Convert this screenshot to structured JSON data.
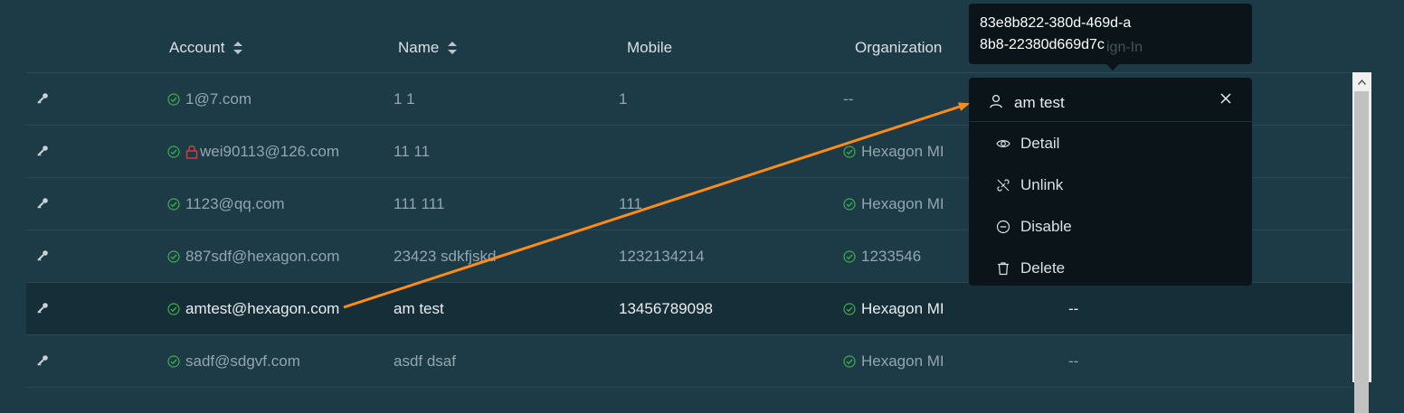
{
  "table": {
    "headers": {
      "account": "Account",
      "name": "Name",
      "mobile": "Mobile",
      "organization": "Organization"
    },
    "rows": [
      {
        "account": "1@7.com",
        "name": "1 1",
        "mobile": "1",
        "organization": "--",
        "org_icon": "",
        "locked": false,
        "last": ""
      },
      {
        "account": "wei90113@126.com",
        "name": "11 11",
        "mobile": "",
        "organization": "Hexagon MI",
        "org_icon": "check-circle-icon",
        "locked": true,
        "last": ""
      },
      {
        "account": "1123@qq.com",
        "name": "111 111",
        "mobile": "111",
        "organization": "Hexagon MI",
        "org_icon": "check-circle-icon",
        "locked": false,
        "last": ""
      },
      {
        "account": "887sdf@hexagon.com",
        "name": "23423 sdkfjskd",
        "mobile": "1232134214",
        "organization": "1233546",
        "org_icon": "check-circle-icon",
        "locked": false,
        "last": ""
      },
      {
        "account": "amtest@hexagon.com",
        "name": "am test",
        "mobile": "13456789098",
        "organization": "Hexagon MI",
        "org_icon": "check-circle-icon",
        "locked": false,
        "last": "--",
        "selected": true
      },
      {
        "account": "sadf@sdgvf.com",
        "name": "asdf dsaf",
        "mobile": "",
        "organization": "Hexagon MI",
        "org_icon": "check-circle-icon",
        "locked": false,
        "last": "--"
      }
    ]
  },
  "tooltip": {
    "text": "83e8b822-380d-469d-a8b8-22380d669d7c",
    "hidden_header_fragment": "ign-In"
  },
  "menu": {
    "title": "am test",
    "items": [
      {
        "label": "Detail",
        "icon": "eye-icon"
      },
      {
        "label": "Unlink",
        "icon": "unlink-icon"
      },
      {
        "label": "Disable",
        "icon": "minus-circle-icon"
      },
      {
        "label": "Delete",
        "icon": "trash-icon"
      }
    ]
  },
  "colors": {
    "background": "#1d3a47",
    "selected_row": "#162e37",
    "check": "#3fae4d",
    "lock": "#e03a3a",
    "annotation_arrow": "#ff8c1a"
  }
}
